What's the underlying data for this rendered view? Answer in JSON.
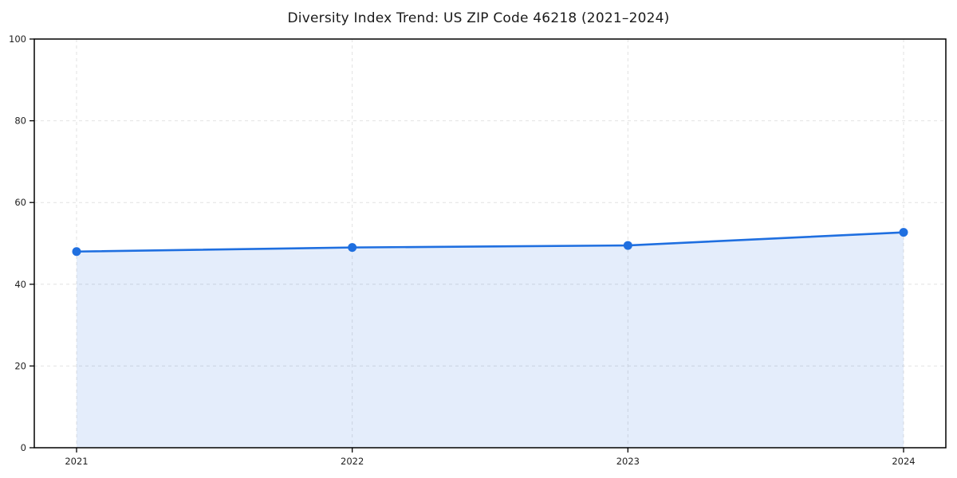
{
  "page": {
    "background": "#ffffff"
  },
  "chart_data": {
    "type": "area",
    "title": "Diversity Index Trend: US ZIP Code 46218 (2021–2024)",
    "x": [
      2021,
      2022,
      2023,
      2024
    ],
    "xtick_labels": [
      "2021",
      "2022",
      "2023",
      "2024"
    ],
    "series": [
      {
        "name": "Diversity Index",
        "values": [
          48.0,
          49.0,
          49.5,
          52.7
        ]
      }
    ],
    "xlabel": "",
    "ylabel": "",
    "ylim": [
      0,
      100
    ],
    "yticks": [
      0,
      20,
      40,
      60,
      80,
      100
    ],
    "grid": true,
    "grid_style": "dashed",
    "legend": "none",
    "colors": {
      "line": "#1f6fe0",
      "marker": "#1f6fe0",
      "fill": "rgba(31, 111, 224, 0.12)",
      "grid": "#e2e2e2",
      "axis": "#000000",
      "tick_label": "#1f1f1f",
      "title": "#1a1a1a"
    }
  }
}
